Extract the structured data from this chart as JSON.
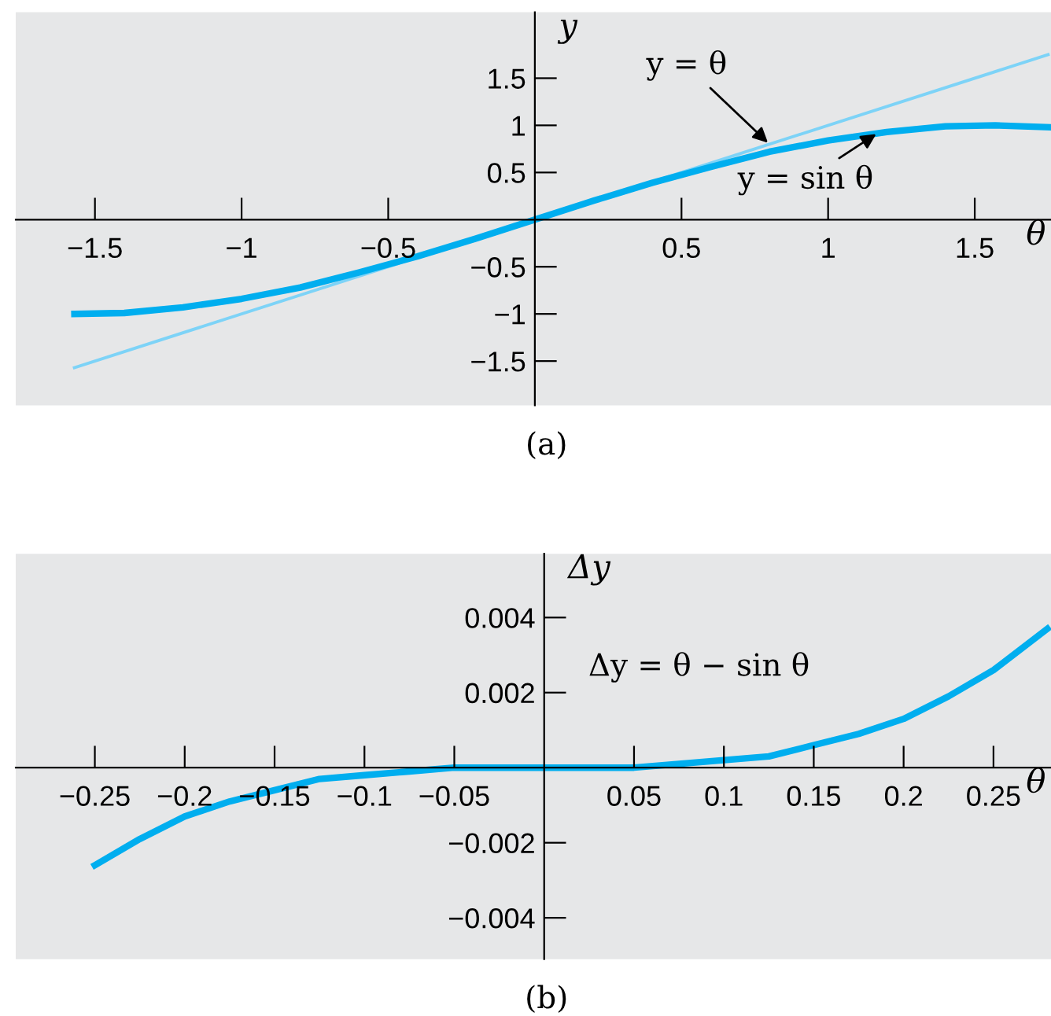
{
  "chart_data": [
    {
      "type": "line",
      "xlabel": "θ",
      "ylabel": "y",
      "xlim": [
        -1.77,
        1.76
      ],
      "ylim": [
        -1.97,
        2.2
      ],
      "xticks": [
        -1.5,
        -1,
        -0.5,
        0.5,
        1,
        1.5
      ],
      "yticks": [
        -1.5,
        -1,
        -0.5,
        0.5,
        1,
        1.5
      ],
      "grid": false,
      "legend": false,
      "series": [
        {
          "color": "#7dd3f7",
          "x": [
            -1.57,
            1.75
          ],
          "values": [
            -1.57,
            1.75
          ]
        },
        {
          "color": "#00aeef",
          "x": [
            -1.57,
            -1.4,
            -1.2,
            -1.0,
            -0.8,
            -0.6,
            -0.4,
            -0.2,
            0,
            0.2,
            0.4,
            0.6,
            0.8,
            1.0,
            1.2,
            1.4,
            1.57,
            1.75
          ],
          "values": [
            -1,
            -0.99,
            -0.93,
            -0.84,
            -0.72,
            -0.56,
            -0.39,
            -0.2,
            0,
            0.2,
            0.39,
            0.56,
            0.72,
            0.84,
            0.93,
            0.99,
            1,
            0.98
          ]
        }
      ],
      "annotations": [
        {
          "text": "y = θ",
          "x": 0.8,
          "y": 0.8
        },
        {
          "text": "y = sin θ",
          "x": 1.17,
          "y": 0.92
        },
        "(a)"
      ]
    },
    {
      "type": "line",
      "xlabel": "θ",
      "ylabel": "Δy",
      "xlim": [
        -0.294,
        0.282
      ],
      "ylim": [
        -0.0051,
        0.0057
      ],
      "xticks": [
        -0.25,
        -0.2,
        -0.15,
        -0.1,
        -0.05,
        0.05,
        0.1,
        0.15,
        0.2,
        0.25
      ],
      "yticks": [
        -0.004,
        -0.002,
        0.002,
        0.004
      ],
      "grid": false,
      "legend": false,
      "series": [
        {
          "color": "#00aeef",
          "x": [
            -0.25,
            -0.225,
            -0.2,
            -0.175,
            -0.15,
            -0.125,
            -0.1,
            -0.075,
            -0.05,
            0,
            0.05,
            0.075,
            0.1,
            0.125,
            0.15,
            0.175,
            0.2,
            0.225,
            0.25,
            0.28
          ],
          "values": [
            -0.0026,
            -0.0019,
            -0.0013,
            -0.0009,
            -0.0006,
            -0.0003,
            -0.0002,
            -0.0001,
            0,
            0,
            0,
            0.0001,
            0.0002,
            0.0003,
            0.0006,
            0.0009,
            0.0013,
            0.0019,
            0.0026,
            0.0037
          ]
        }
      ],
      "annotations": [
        "Δy = θ − sin θ",
        "(b)"
      ]
    }
  ]
}
